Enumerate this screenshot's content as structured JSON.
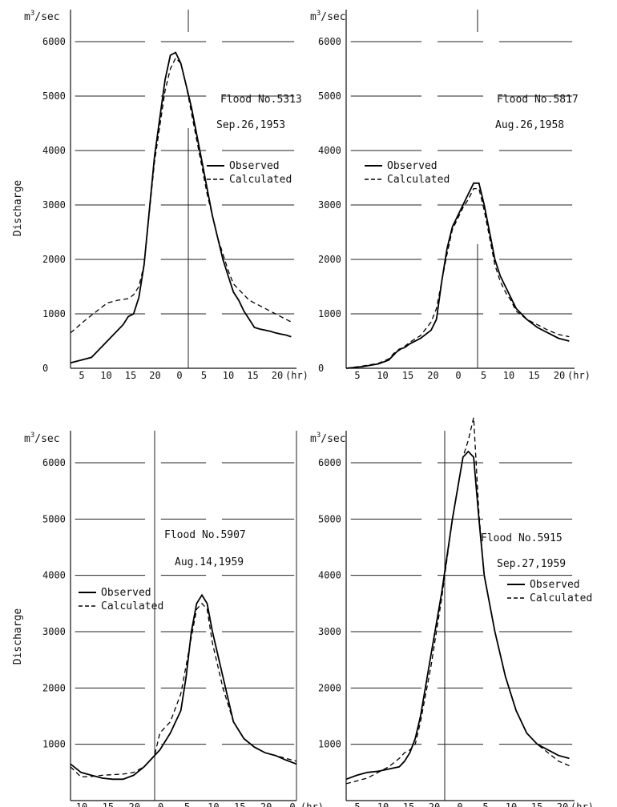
{
  "y_axis_label": "Discharge",
  "chart_data": [
    {
      "type": "line",
      "title": "Flood No.5313",
      "subtitle": "Sep.26,1953",
      "xlabel": "(hr)",
      "ylabel": "Discharge",
      "y_unit": "m3/sec",
      "ylim": [
        0,
        6000
      ],
      "y_ticks": [
        "0",
        "1000",
        "2000",
        "3000",
        "4000",
        "5000",
        "6000"
      ],
      "x_ticks": [
        "5",
        "10",
        "15",
        "20",
        "0",
        "5",
        "10",
        "15",
        "20"
      ],
      "xlim": [
        2,
        45
      ],
      "legend_position": "center-right",
      "series": [
        {
          "name": "Observed",
          "style": "solid",
          "x": [
            2,
            6,
            9,
            12,
            13,
            14,
            15,
            16,
            18,
            20,
            21,
            22,
            23,
            24,
            25,
            26,
            27,
            28,
            29,
            30,
            31,
            32,
            33,
            34,
            35,
            36,
            37,
            38,
            39,
            40,
            41,
            42,
            43,
            44
          ],
          "y": [
            100,
            200,
            500,
            800,
            950,
            1000,
            1300,
            1900,
            3900,
            5300,
            5750,
            5800,
            5600,
            5200,
            4800,
            4300,
            3800,
            3300,
            2800,
            2400,
            2000,
            1700,
            1400,
            1250,
            1050,
            900,
            750,
            720,
            700,
            680,
            650,
            630,
            610,
            580
          ]
        },
        {
          "name": "Calculated",
          "style": "dashed",
          "x": [
            2,
            5,
            7,
            9,
            11,
            13,
            14,
            15,
            16,
            18,
            20,
            21,
            22,
            23,
            24,
            25,
            26,
            27,
            28,
            29,
            30,
            31,
            32,
            33,
            34,
            35,
            36,
            37,
            38,
            39,
            40,
            41,
            42,
            43,
            44
          ],
          "y": [
            650,
            900,
            1050,
            1200,
            1250,
            1280,
            1350,
            1500,
            1900,
            3800,
            5100,
            5500,
            5700,
            5600,
            5200,
            4700,
            4200,
            3700,
            3200,
            2800,
            2400,
            2100,
            1800,
            1550,
            1450,
            1350,
            1250,
            1200,
            1150,
            1100,
            1050,
            1000,
            950,
            900,
            850
          ]
        }
      ]
    },
    {
      "type": "line",
      "title": "Flood No.5817",
      "subtitle": "Aug.26,1958",
      "xlabel": "(hr)",
      "y_unit": "m3/sec",
      "ylim": [
        0,
        6000
      ],
      "y_ticks": [
        "0",
        "1000",
        "2000",
        "3000",
        "4000",
        "5000",
        "6000"
      ],
      "x_ticks": [
        "5",
        "10",
        "15",
        "20",
        "0",
        "5",
        "10",
        "15",
        "20"
      ],
      "xlim": [
        2,
        45
      ],
      "legend_position": "center-right",
      "series": [
        {
          "name": "Observed",
          "style": "solid",
          "x": [
            2,
            5,
            8,
            10,
            11,
            12,
            13,
            14,
            16,
            18,
            19,
            20,
            21,
            22,
            23,
            24,
            25,
            26,
            27,
            28,
            29,
            30,
            31,
            32,
            33,
            34,
            36,
            38,
            40,
            42,
            44
          ],
          "y": [
            0,
            30,
            80,
            150,
            250,
            350,
            380,
            450,
            550,
            700,
            900,
            1600,
            2200,
            2600,
            2800,
            3000,
            3200,
            3400,
            3400,
            3000,
            2500,
            2000,
            1700,
            1500,
            1300,
            1100,
            900,
            750,
            650,
            550,
            500
          ]
        },
        {
          "name": "Calculated",
          "style": "dashed",
          "x": [
            2,
            5,
            8,
            10,
            11,
            12,
            13,
            14,
            16,
            18,
            19,
            20,
            21,
            22,
            23,
            24,
            25,
            26,
            27,
            28,
            29,
            30,
            31,
            32,
            33,
            34,
            36,
            38,
            40,
            42,
            44
          ],
          "y": [
            0,
            40,
            90,
            170,
            280,
            330,
            400,
            480,
            600,
            850,
            1100,
            1600,
            2100,
            2550,
            2750,
            2950,
            3100,
            3300,
            3300,
            2900,
            2400,
            1900,
            1600,
            1400,
            1250,
            1050,
            900,
            800,
            700,
            620,
            580
          ]
        }
      ]
    },
    {
      "type": "line",
      "title": "Flood No.5907",
      "subtitle": "Aug.14,1959",
      "xlabel": "(hr)",
      "ylabel": "Discharge",
      "y_unit": "m3/sec",
      "ylim": [
        0,
        6000
      ],
      "y_ticks": [
        "1000",
        "2000",
        "3000",
        "4000",
        "5000",
        "6000"
      ],
      "x_ticks": [
        "10",
        "15",
        "20",
        "0",
        "5",
        "10",
        "15",
        "20",
        "0"
      ],
      "xlim": [
        7,
        50
      ],
      "legend_position": "center-left",
      "series": [
        {
          "name": "Observed",
          "style": "solid",
          "x": [
            7,
            9,
            11,
            13,
            15,
            17,
            19,
            21,
            23,
            24,
            26,
            28,
            29,
            30,
            31,
            32,
            33,
            34,
            36,
            38,
            40,
            42,
            44,
            46,
            48,
            50
          ],
          "y": [
            650,
            500,
            450,
            400,
            380,
            380,
            450,
            600,
            800,
            900,
            1200,
            1600,
            2200,
            3000,
            3500,
            3650,
            3500,
            3000,
            2200,
            1400,
            1100,
            950,
            850,
            800,
            720,
            650
          ]
        },
        {
          "name": "Calculated",
          "style": "dashed",
          "x": [
            7,
            9,
            11,
            13,
            15,
            17,
            19,
            21,
            23,
            24,
            26,
            28,
            29,
            30,
            31,
            32,
            33,
            34,
            36,
            38,
            40,
            42,
            44,
            46,
            48,
            50
          ],
          "y": [
            600,
            420,
            430,
            450,
            460,
            470,
            500,
            600,
            800,
            1200,
            1400,
            1900,
            2400,
            2900,
            3400,
            3500,
            3400,
            2800,
            2000,
            1400,
            1100,
            950,
            850,
            800,
            750,
            700
          ]
        }
      ]
    },
    {
      "type": "line",
      "title": "Flood No.5915",
      "subtitle": "Sep.27,1959",
      "xlabel": "(hr)",
      "y_unit": "m3/sec",
      "ylim": [
        0,
        6000
      ],
      "y_ticks": [
        "1000",
        "2000",
        "3000",
        "4000",
        "5000",
        "6000"
      ],
      "x_ticks": [
        "5",
        "10",
        "15",
        "20",
        "0",
        "5",
        "10",
        "15",
        "20"
      ],
      "xlim": [
        2,
        45
      ],
      "legend_position": "center-right",
      "series": [
        {
          "name": "Observed",
          "style": "solid",
          "x": [
            2,
            4,
            6,
            8,
            10,
            12,
            13,
            14,
            15,
            16,
            18,
            20,
            22,
            24,
            25,
            26,
            27,
            28,
            30,
            32,
            34,
            36,
            38,
            40,
            42,
            44
          ],
          "y": [
            380,
            450,
            500,
            520,
            560,
            600,
            700,
            850,
            1100,
            1500,
            2600,
            3700,
            5000,
            6100,
            6200,
            6100,
            5000,
            4000,
            3000,
            2200,
            1600,
            1200,
            1000,
            900,
            800,
            750
          ]
        },
        {
          "name": "Calculated",
          "style": "dashed",
          "x": [
            2,
            4,
            6,
            8,
            10,
            12,
            13,
            14,
            15,
            16,
            18,
            20,
            22,
            24,
            25,
            26,
            27,
            28,
            30,
            32,
            34,
            36,
            38,
            40,
            42,
            44
          ],
          "y": [
            300,
            350,
            400,
            500,
            600,
            750,
            850,
            900,
            1000,
            1400,
            2400,
            3600,
            5000,
            6100,
            6400,
            6800,
            5100,
            4000,
            3000,
            2200,
            1600,
            1200,
            1000,
            850,
            700,
            620
          ]
        }
      ]
    }
  ]
}
